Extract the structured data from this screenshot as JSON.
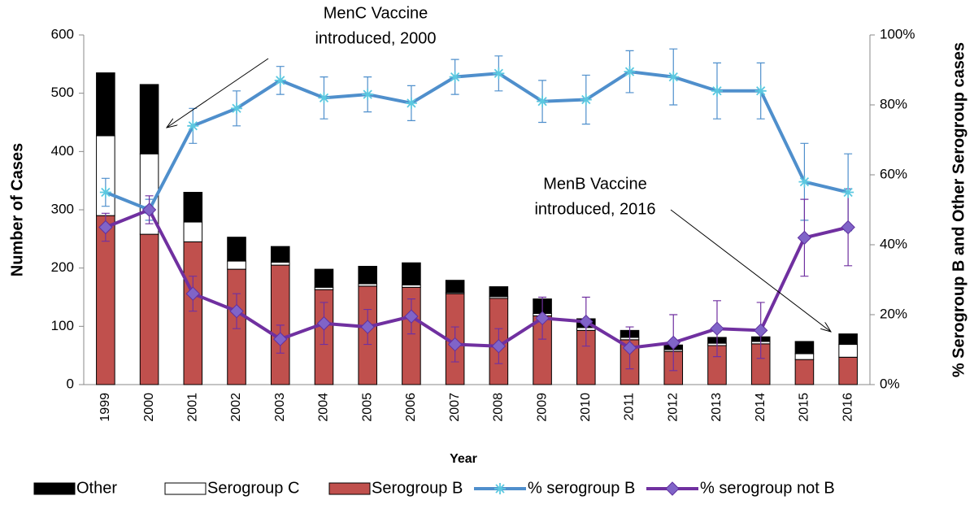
{
  "chart_data": {
    "type": "bar_line",
    "xlabel": "Year",
    "ylabel": "Number of Cases",
    "y2label": "% Serogroup B and Other Serogroup  cases",
    "categories": [
      "1999",
      "2000",
      "2001",
      "2002",
      "2003",
      "2004",
      "2005",
      "2006",
      "2007",
      "2008",
      "2009",
      "2010",
      "2011",
      "2012",
      "2013",
      "2014",
      "2015",
      "2016"
    ],
    "series": [
      {
        "name": "Serogroup B",
        "kind": "bar",
        "color": "#c0504d",
        "values": [
          290,
          258,
          245,
          198,
          205,
          163,
          169,
          167,
          156,
          148,
          118,
          93,
          77,
          57,
          67,
          70,
          43,
          47
        ]
      },
      {
        "name": "Serogroup C",
        "kind": "bar",
        "color": "#ffffff",
        "values": [
          137,
          138,
          34,
          14,
          5,
          4,
          4,
          4,
          2,
          3,
          4,
          5,
          4,
          3,
          4,
          4,
          10,
          22
        ]
      },
      {
        "name": "Other",
        "kind": "bar",
        "color": "#000000",
        "values": [
          108,
          119,
          51,
          41,
          27,
          31,
          30,
          38,
          21,
          17,
          25,
          15,
          12,
          8,
          10,
          8,
          21,
          18
        ]
      },
      {
        "name": "% serogroup B",
        "kind": "line",
        "axis": "y2",
        "color": "#4f8fcc",
        "marker": "star",
        "values": [
          55,
          50,
          74,
          79,
          87,
          82,
          83,
          80.5,
          88,
          89,
          81,
          81.5,
          89.5,
          88,
          84,
          84,
          58,
          55
        ],
        "errors": [
          4,
          3,
          5,
          5,
          4,
          6,
          5,
          5,
          5,
          5,
          6,
          7,
          6,
          8,
          8,
          8,
          11,
          11
        ]
      },
      {
        "name": "% serogroup not B",
        "kind": "line",
        "axis": "y2",
        "color": "#7030a0",
        "marker": "diamond",
        "values": [
          45,
          50,
          26,
          21,
          13,
          17.5,
          16.5,
          19.5,
          11.5,
          11,
          19,
          18,
          10.5,
          12,
          16,
          15.5,
          42,
          45
        ],
        "errors": [
          4,
          4,
          5,
          5,
          4,
          6,
          5,
          5,
          5,
          5,
          6,
          7,
          6,
          8,
          8,
          8,
          11,
          11
        ]
      }
    ],
    "ylim": [
      0,
      600
    ],
    "yticks": [
      0,
      100,
      200,
      300,
      400,
      500,
      600
    ],
    "y2lim": [
      0,
      100
    ],
    "y2ticks": [
      {
        "value": 0,
        "label": "0%"
      },
      {
        "value": 20,
        "label": "20%"
      },
      {
        "value": 40,
        "label": "40%"
      },
      {
        "value": 60,
        "label": "60%"
      },
      {
        "value": 80,
        "label": "80%"
      },
      {
        "value": 100,
        "label": "100%"
      }
    ],
    "annotations": [
      {
        "lines": [
          "MenC Vaccine",
          "introduced, 2000"
        ]
      },
      {
        "lines": [
          "MenB Vaccine",
          "introduced, 2016"
        ]
      }
    ]
  }
}
